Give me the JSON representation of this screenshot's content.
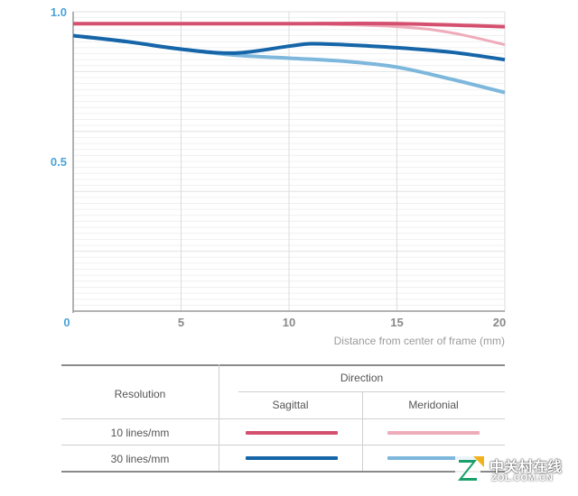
{
  "chart_data": {
    "type": "line",
    "x_ticks": [
      "0",
      "5",
      "10",
      "15",
      "20"
    ],
    "y_ticks": [
      "0.5",
      "1.0"
    ],
    "xlabel": "Distance from center of frame (mm)",
    "ylabel": "",
    "xlim": [
      0,
      20
    ],
    "ylim": [
      0,
      1
    ],
    "grid": true,
    "series": [
      {
        "name": "Sagittal 10 lines/mm",
        "color": "#d4506e",
        "width": 4,
        "x": [
          0,
          5,
          10,
          15,
          20
        ],
        "y": [
          0.96,
          0.96,
          0.96,
          0.96,
          0.95
        ]
      },
      {
        "name": "Meridonial 10 lines/mm",
        "color": "#eeacbb",
        "width": 3,
        "x": [
          0,
          5,
          10,
          15,
          17.5,
          20
        ],
        "y": [
          0.96,
          0.96,
          0.96,
          0.95,
          0.93,
          0.89
        ]
      },
      {
        "name": "Sagittal 30 lines/mm",
        "color": "#1565a8",
        "width": 4,
        "x": [
          0,
          2.5,
          5,
          7.5,
          10,
          11,
          12.5,
          15,
          17.5,
          20
        ],
        "y": [
          0.92,
          0.9,
          0.875,
          0.862,
          0.885,
          0.893,
          0.89,
          0.88,
          0.865,
          0.84
        ]
      },
      {
        "name": "Meridonial 30 lines/mm",
        "color": "#7db7dc",
        "width": 4,
        "x": [
          0,
          2.5,
          5,
          7.5,
          10,
          12.5,
          15,
          17.5,
          20
        ],
        "y": [
          0.92,
          0.9,
          0.875,
          0.855,
          0.845,
          0.835,
          0.815,
          0.775,
          0.73
        ]
      }
    ]
  },
  "legend": {
    "direction_label": "Direction",
    "resolution_label": "Resolution",
    "sagittal_label": "Sagittal",
    "meridonial_label": "Meridonial",
    "rows": [
      {
        "label": "10 lines/mm",
        "sagittal_color": "#d4506e",
        "meridonial_color": "#eeacbb"
      },
      {
        "label": "30 lines/mm",
        "sagittal_color": "#1565a8",
        "meridonial_color": "#7db7dc"
      }
    ]
  },
  "watermark": {
    "brand_text": "中关村在线",
    "url_text": "ZOL.COM.CN"
  }
}
